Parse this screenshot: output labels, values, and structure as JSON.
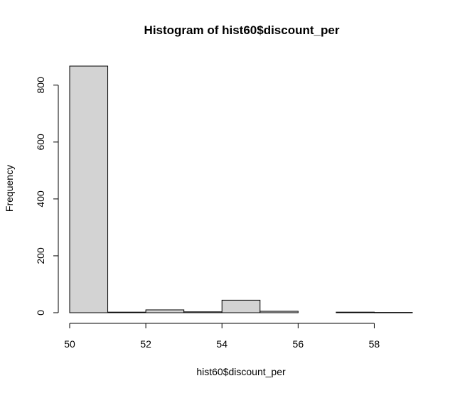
{
  "chart_data": {
    "type": "bar",
    "title": "Histogram of hist60$discount_per",
    "xlabel": "hist60$discount_per",
    "ylabel": "Frequency",
    "bins": [
      {
        "start": 50,
        "end": 51,
        "count": 867
      },
      {
        "start": 51,
        "end": 52,
        "count": 2
      },
      {
        "start": 52,
        "end": 53,
        "count": 10
      },
      {
        "start": 53,
        "end": 54,
        "count": 3
      },
      {
        "start": 54,
        "end": 55,
        "count": 44
      },
      {
        "start": 55,
        "end": 56,
        "count": 5
      },
      {
        "start": 56,
        "end": 57,
        "count": 0
      },
      {
        "start": 57,
        "end": 58,
        "count": 2
      },
      {
        "start": 58,
        "end": 59,
        "count": 1
      }
    ],
    "xlim": [
      50,
      59
    ],
    "ylim": [
      0,
      867
    ],
    "x_ticks": [
      "50",
      "52",
      "54",
      "56",
      "58"
    ],
    "y_ticks": [
      "0",
      "200",
      "400",
      "600",
      "800"
    ],
    "bar_color": "#d3d3d3",
    "grid": false,
    "legend": "none"
  }
}
